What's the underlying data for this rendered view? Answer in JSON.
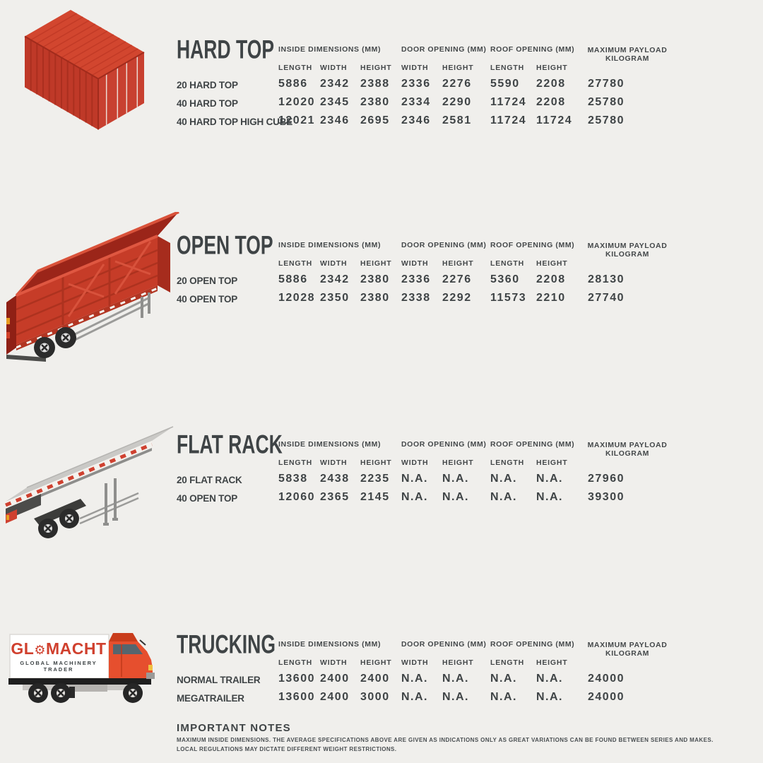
{
  "page": {
    "background": "#f0efec",
    "text_color": "#3f4446",
    "accent_red": "#d0402e"
  },
  "table_headers": {
    "inside": "INSIDE DIMENSIONS (MM)",
    "door": "DOOR OPENING (MM)",
    "roof": "ROOF OPENING (MM)",
    "payload_line1": "MAXIMUM PAYLOAD",
    "payload_line2": "KILOGRAM",
    "length": "LENGTH",
    "width": "WIDTH",
    "height": "HEIGHT"
  },
  "sections": [
    {
      "title": "HARD TOP",
      "illustration": "hard-top-container",
      "rows": [
        {
          "label": "20 HARD TOP",
          "inside": [
            "5886",
            "2342",
            "2388"
          ],
          "door": [
            "2336",
            "2276"
          ],
          "roof": [
            "5590",
            "2208"
          ],
          "payload": "27780"
        },
        {
          "label": "40 HARD TOP",
          "inside": [
            "12020",
            "2345",
            "2380"
          ],
          "door": [
            "2334",
            "2290"
          ],
          "roof": [
            "11724",
            "2208"
          ],
          "payload": "25780"
        },
        {
          "label": "40 HARD TOP HIGH CUBE",
          "inside": [
            "12021",
            "2346",
            "2695"
          ],
          "door": [
            "2346",
            "2581"
          ],
          "roof": [
            "11724",
            "11724"
          ],
          "payload": "25780"
        }
      ]
    },
    {
      "title": "OPEN TOP",
      "illustration": "open-top-trailer",
      "rows": [
        {
          "label": "20 OPEN TOP",
          "inside": [
            "5886",
            "2342",
            "2380"
          ],
          "door": [
            "2336",
            "2276"
          ],
          "roof": [
            "5360",
            "2208"
          ],
          "payload": "28130"
        },
        {
          "label": "40 OPEN TOP",
          "inside": [
            "12028",
            "2350",
            "2380"
          ],
          "door": [
            "2338",
            "2292"
          ],
          "roof": [
            "11573",
            "2210"
          ],
          "payload": "27740"
        }
      ]
    },
    {
      "title": "FLAT RACK",
      "illustration": "flat-rack-trailer",
      "rows": [
        {
          "label": "20 FLAT RACK",
          "inside": [
            "5838",
            "2438",
            "2235"
          ],
          "door": [
            "N.A.",
            "N.A."
          ],
          "roof": [
            "N.A.",
            "N.A."
          ],
          "payload": "27960"
        },
        {
          "label": "40 OPEN TOP",
          "inside": [
            "12060",
            "2365",
            "2145"
          ],
          "door": [
            "N.A.",
            "N.A."
          ],
          "roof": [
            "N.A.",
            "N.A."
          ],
          "payload": "39300"
        }
      ]
    },
    {
      "title": "TRUCKING",
      "illustration": "box-truck",
      "rows": [
        {
          "label": "NORMAL TRAILER",
          "inside": [
            "13600",
            "2400",
            "2400"
          ],
          "door": [
            "N.A.",
            "N.A."
          ],
          "roof": [
            "N.A.",
            "N.A."
          ],
          "payload": "24000"
        },
        {
          "label": "MEGATRAILER",
          "inside": [
            "13600",
            "2400",
            "3000"
          ],
          "door": [
            "N.A.",
            "N.A."
          ],
          "roof": [
            "N.A.",
            "N.A."
          ],
          "payload": "24000"
        }
      ]
    }
  ],
  "truck_logo": {
    "brand_prefix": "GL",
    "gear_icon": "⚙",
    "brand_suffix": "MACHT",
    "tagline": "GLOBAL MACHINERY TRADER"
  },
  "notes": {
    "title": "IMPORTANT NOTES",
    "lines": [
      "MAXIMUM INSIDE DIMENSIONS. THE AVERAGE SPECIFICATIONS ABOVE ARE GIVEN AS INDICATIONS ONLY AS GREAT VARIATIONS CAN BE FOUND BETWEEN SERIES AND MAKES.",
      "LOCAL REGULATIONS MAY DICTATE DIFFERENT WEIGHT RESTRICTIONS."
    ]
  }
}
